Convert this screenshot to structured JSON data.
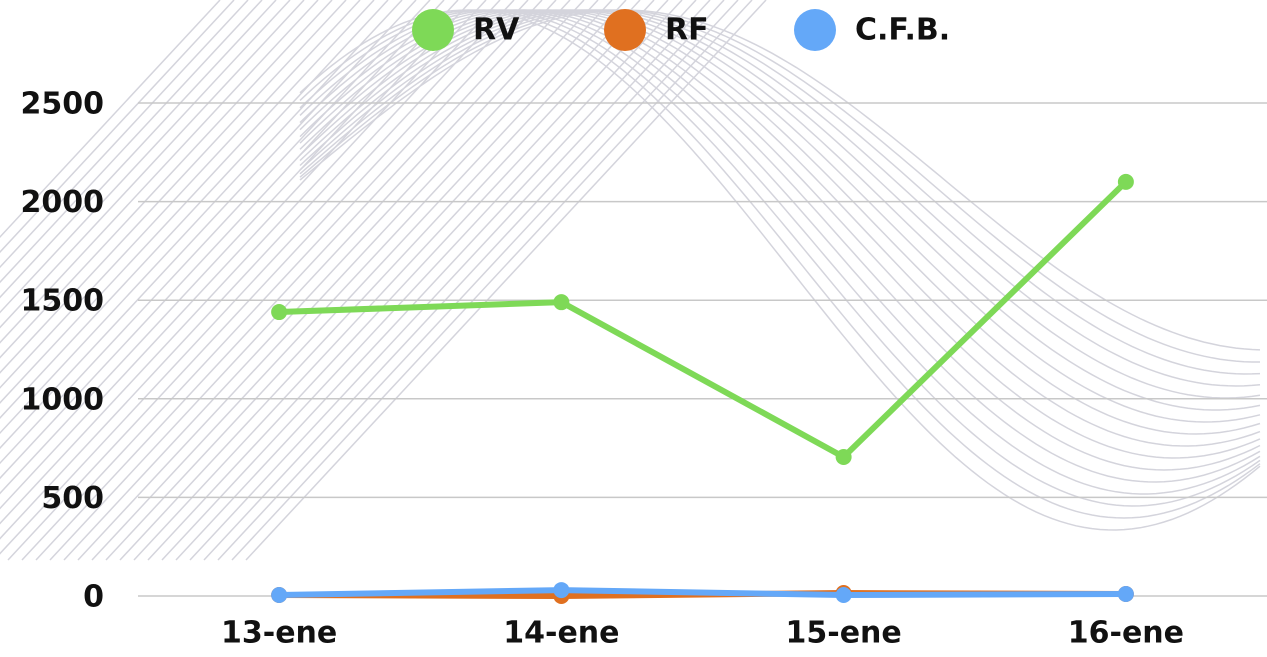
{
  "chart_data": {
    "type": "line",
    "categories": [
      "13-ene",
      "14-ene",
      "15-ene",
      "16-ene"
    ],
    "series": [
      {
        "name": "RV",
        "color": "#7ed957",
        "values": [
          1440,
          1490,
          705,
          2100
        ]
      },
      {
        "name": "RF",
        "color": "#e07020",
        "values": [
          5,
          0,
          15,
          10
        ]
      },
      {
        "name": "C.F.B.",
        "color": "#64a8f8",
        "values": [
          5,
          30,
          5,
          10
        ]
      }
    ],
    "ylim": [
      0,
      3000
    ],
    "yticks": [
      0,
      500,
      1000,
      1500,
      2000,
      2500
    ],
    "grid": true,
    "legend": "top"
  }
}
